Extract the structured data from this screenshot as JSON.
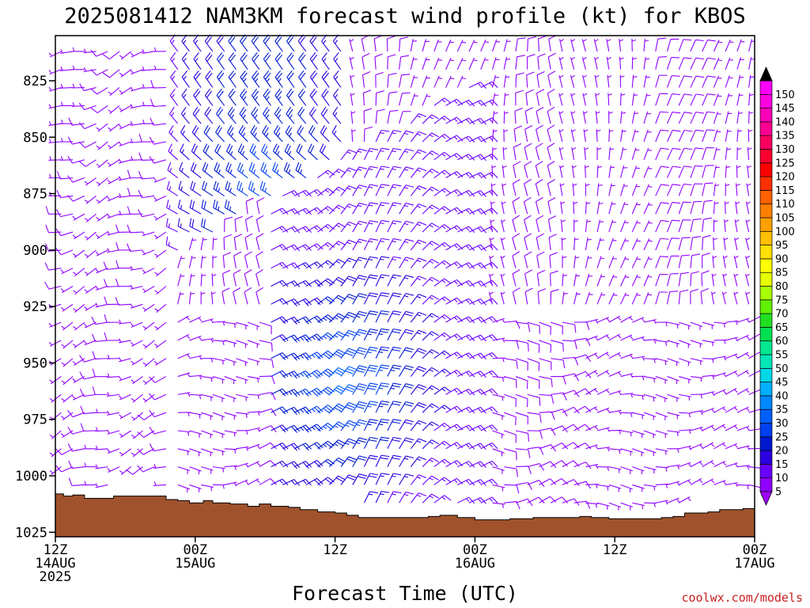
{
  "title": "2025081412 NAM3KM forecast wind profile (kt) for KBOS",
  "credit": "coolwx.com/models",
  "chart_data": {
    "type": "wind-barb-time-height",
    "xlabel": "Forecast Time (UTC)",
    "ylabel": "",
    "x_range_hours": [
      0,
      60
    ],
    "y_range_hpa": [
      805,
      1027
    ],
    "y_ticks": [
      825,
      850,
      875,
      900,
      925,
      950,
      975,
      1000,
      1025
    ],
    "x_ticks": [
      {
        "hour": 0,
        "lines": [
          "12Z",
          "14AUG",
          "2025"
        ]
      },
      {
        "hour": 12,
        "lines": [
          "00Z",
          "15AUG"
        ]
      },
      {
        "hour": 24,
        "lines": [
          "12Z"
        ]
      },
      {
        "hour": 36,
        "lines": [
          "00Z",
          "16AUG"
        ]
      },
      {
        "hour": 48,
        "lines": [
          "12Z"
        ]
      },
      {
        "hour": 60,
        "lines": [
          "00Z",
          "17AUG"
        ]
      }
    ],
    "surface_pressure_hpa": [
      [
        0,
        1008
      ],
      [
        0.7,
        1009
      ],
      [
        1.5,
        1008.5
      ],
      [
        2.5,
        1010
      ],
      [
        4.5,
        1010
      ],
      [
        5,
        1009
      ],
      [
        7.5,
        1009
      ],
      [
        9.5,
        1010.5
      ],
      [
        10.5,
        1011
      ],
      [
        11.5,
        1012
      ],
      [
        12.7,
        1011
      ],
      [
        13.5,
        1012
      ],
      [
        15,
        1012.5
      ],
      [
        16.5,
        1013.5
      ],
      [
        17.5,
        1012.5
      ],
      [
        18.5,
        1013.5
      ],
      [
        20,
        1014
      ],
      [
        21,
        1015
      ],
      [
        22.5,
        1016
      ],
      [
        24,
        1016.5
      ],
      [
        25,
        1017.5
      ],
      [
        26,
        1018.5
      ],
      [
        27.5,
        1018.5
      ],
      [
        30,
        1018.5
      ],
      [
        32,
        1018
      ],
      [
        33,
        1017.5
      ],
      [
        34.5,
        1018.5
      ],
      [
        36,
        1019.5
      ],
      [
        37.5,
        1019.5
      ],
      [
        39,
        1019
      ],
      [
        41,
        1018.5
      ],
      [
        42.5,
        1018.5
      ],
      [
        45,
        1018
      ],
      [
        46,
        1018.5
      ],
      [
        47.5,
        1019
      ],
      [
        50,
        1019
      ],
      [
        52,
        1018.5
      ],
      [
        53,
        1018
      ],
      [
        54,
        1016.5
      ],
      [
        56,
        1016
      ],
      [
        57,
        1015
      ],
      [
        59,
        1014.5
      ],
      [
        60,
        1014
      ]
    ],
    "colorbar": {
      "values": [
        5,
        10,
        15,
        20,
        25,
        30,
        35,
        40,
        45,
        50,
        55,
        60,
        65,
        70,
        75,
        80,
        85,
        90,
        95,
        100,
        105,
        110,
        115,
        120,
        125,
        130,
        135,
        140,
        145,
        150
      ],
      "colors": [
        "#9000ff",
        "#6a00ff",
        "#2a00e0",
        "#0018d0",
        "#0040f0",
        "#0060ff",
        "#0088ff",
        "#00b0ff",
        "#00d8e8",
        "#00e8b8",
        "#00e890",
        "#00e050",
        "#20e020",
        "#60f000",
        "#a8ff00",
        "#e8ff00",
        "#ffff00",
        "#ffe000",
        "#ffc000",
        "#ffa000",
        "#ff8000",
        "#ff6000",
        "#ff3000",
        "#ff0000",
        "#ff0030",
        "#ff0060",
        "#ff0090",
        "#ff00b8",
        "#ff00e0",
        "#ff00ff"
      ],
      "over_color": "#000000",
      "under_color": "#a000ff"
    },
    "wind_regions": [
      {
        "name": "light-southwest-low-levels",
        "hours": [
          0,
          10
        ],
        "hpa": [
          810,
          1010
        ],
        "dir_deg": 260,
        "speed_kt": [
          5,
          10
        ]
      },
      {
        "name": "northwest-jet-core",
        "hours": [
          11,
          25
        ],
        "hpa": [
          820,
          990
        ],
        "dir_deg": 320,
        "speed_kt": [
          15,
          35
        ]
      },
      {
        "name": "northeast-low-level-surge",
        "hours": [
          20,
          36
        ],
        "hpa": [
          900,
          1010
        ],
        "dir_deg": 50,
        "speed_kt": [
          10,
          30
        ]
      },
      {
        "name": "north-upper-levels",
        "hours": [
          26,
          60
        ],
        "hpa": [
          810,
          920
        ],
        "dir_deg": 10,
        "speed_kt": [
          5,
          10
        ]
      },
      {
        "name": "east-low-levels",
        "hours": [
          36,
          60
        ],
        "hpa": [
          920,
          1015
        ],
        "dir_deg": 90,
        "speed_kt": [
          5,
          10
        ]
      }
    ]
  }
}
